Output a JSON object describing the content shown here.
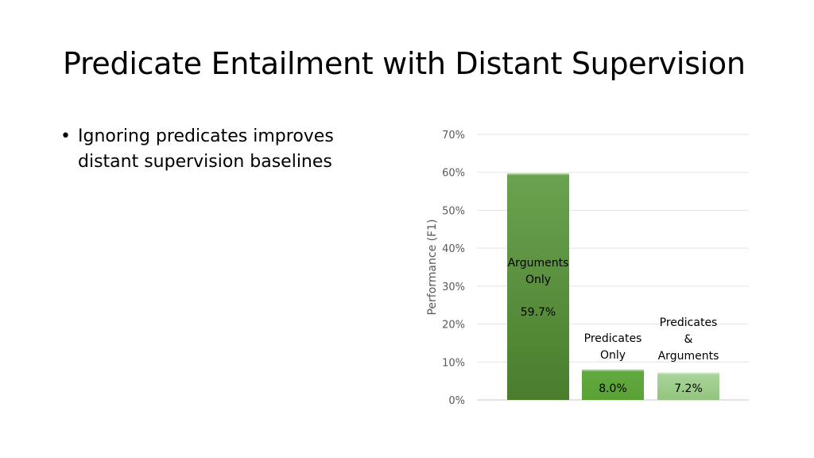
{
  "slide": {
    "title": "Predicate Entailment with Distant Supervision",
    "bullets": [
      {
        "marker": "•",
        "line1": "Ignoring predicates improves",
        "line2": "distant supervision baselines"
      }
    ]
  },
  "chart_data": {
    "type": "bar",
    "categories": [
      [
        "Arguments",
        "Only"
      ],
      [
        "Predicates",
        "Only"
      ],
      [
        "Predicates",
        "&",
        "Arguments"
      ]
    ],
    "values": [
      59.7,
      8.0,
      7.2
    ],
    "value_labels": [
      "59.7%",
      "8.0%",
      "7.2%"
    ],
    "ylabel": "Performance (F1)",
    "ylim": [
      0,
      70
    ],
    "yticks": [
      0,
      10,
      20,
      30,
      40,
      50,
      60,
      70
    ],
    "ytick_labels": [
      "0%",
      "10%",
      "20%",
      "30%",
      "40%",
      "50%",
      "60%",
      "70%"
    ],
    "grid": true,
    "legend": "none",
    "colors": [
      "#548235",
      "#6cb33f",
      "#9fcf8a"
    ]
  }
}
